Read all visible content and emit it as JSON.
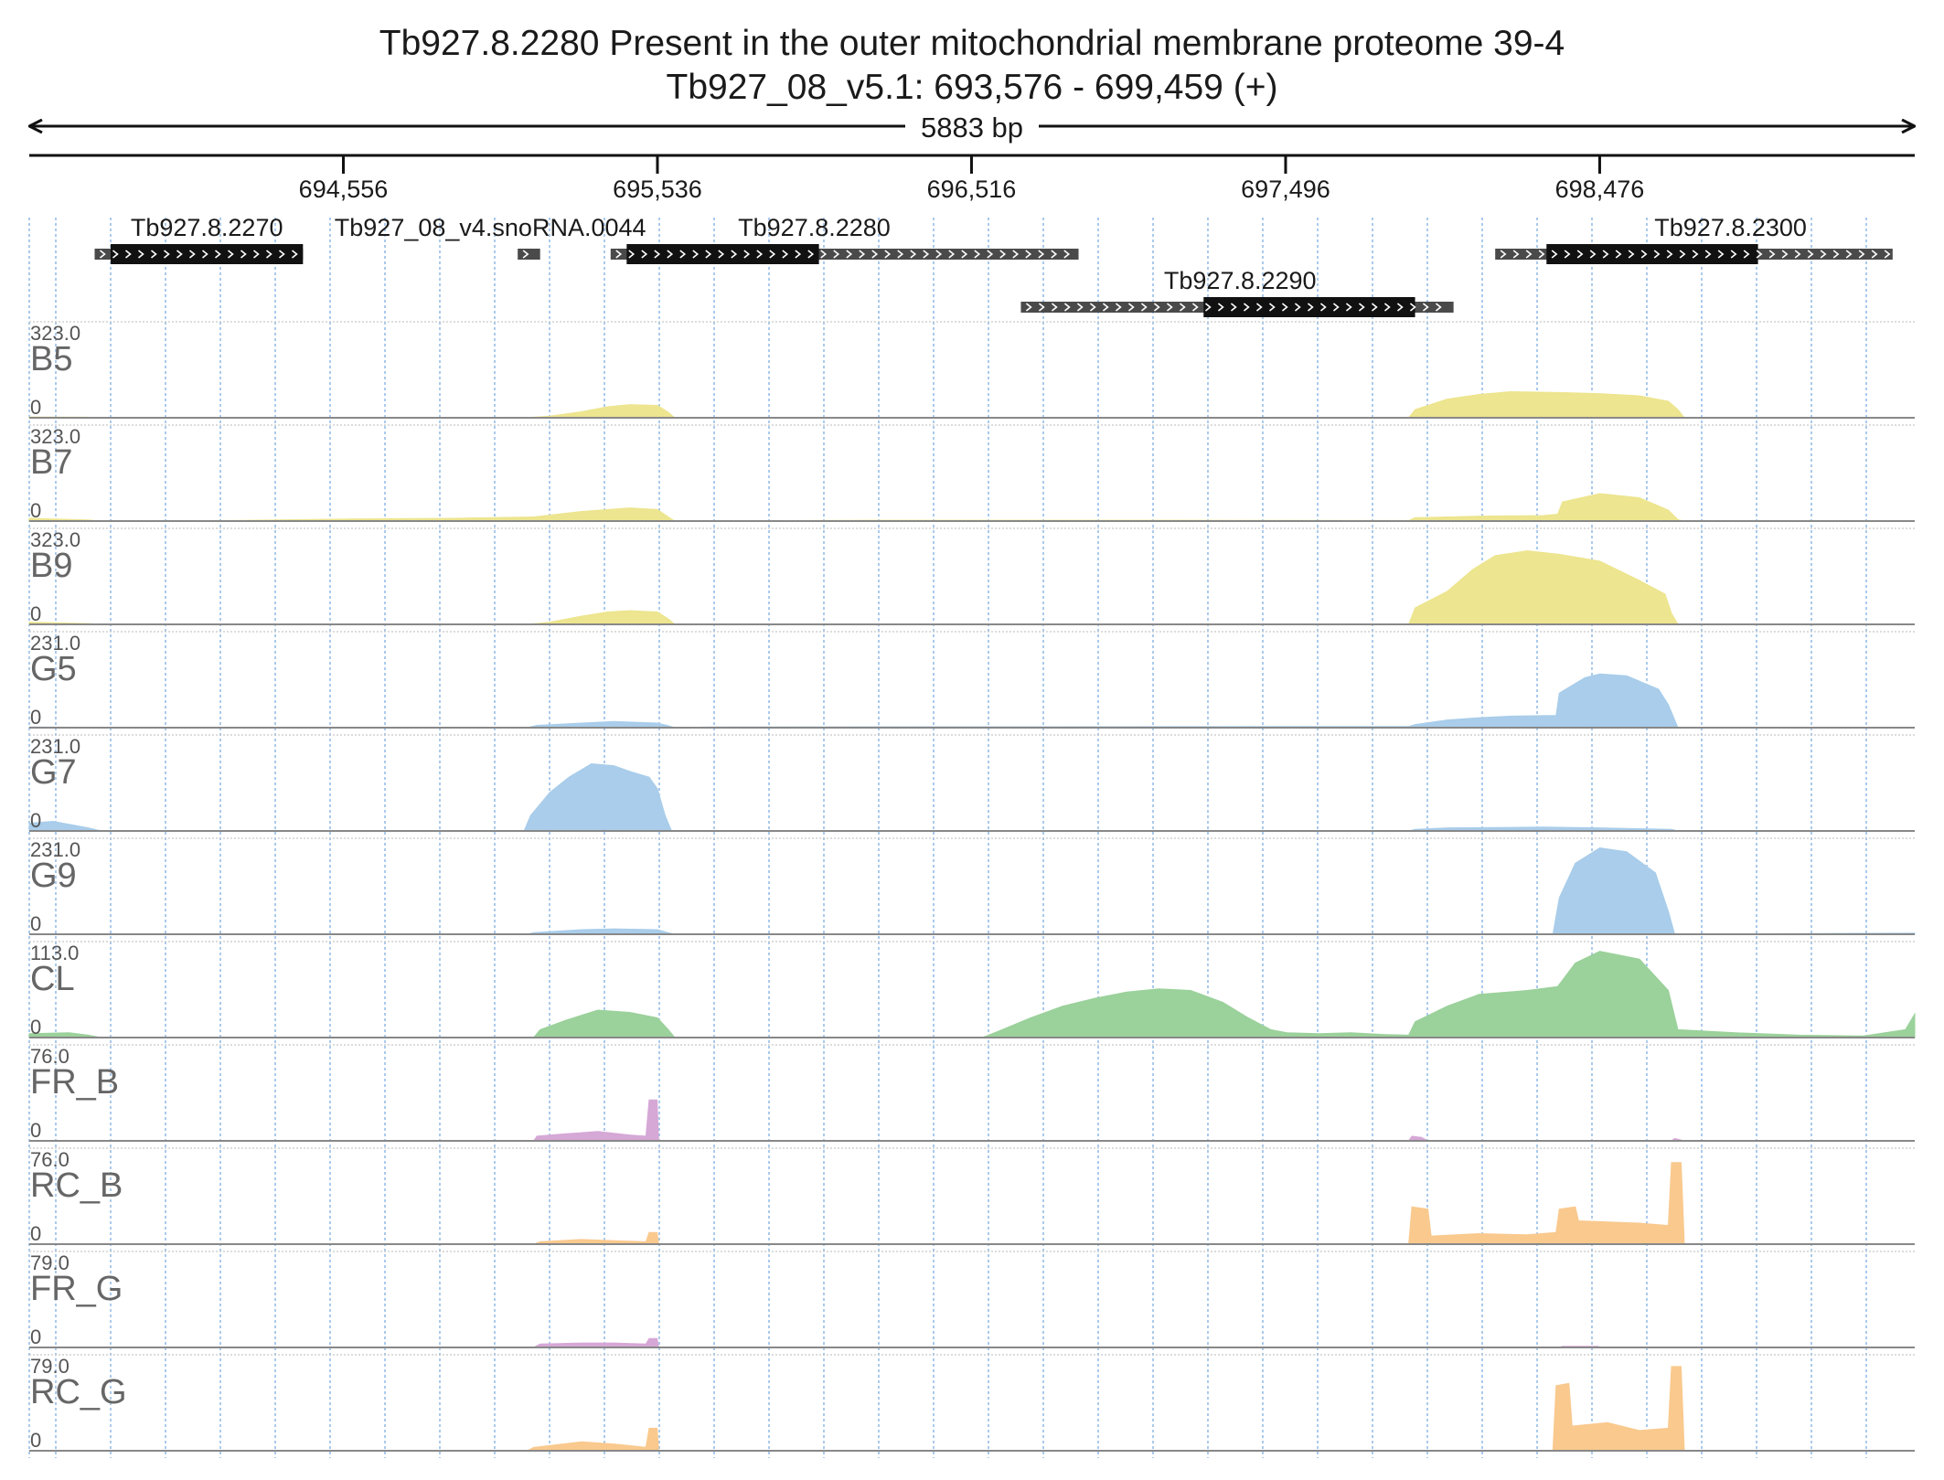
{
  "title": {
    "line1": "Tb927.8.2280  Present in the outer mitochondrial membrane proteome 39-4",
    "line2": "Tb927_08_v5.1: 693,576 - 699,459 (+)"
  },
  "span_label": "5883 bp",
  "chart_data": {
    "type": "area",
    "region": {
      "start": 693576,
      "end": 699459,
      "strand": "+"
    },
    "x_ticks": [
      {
        "value": 694556,
        "label": "694,556"
      },
      {
        "value": 695536,
        "label": "695,536"
      },
      {
        "value": 696516,
        "label": "696,516"
      },
      {
        "value": 697496,
        "label": "697,496"
      },
      {
        "value": 698476,
        "label": "698,476"
      }
    ],
    "genes": [
      {
        "name": "Tb927.8.2270",
        "start": 693780,
        "end": 694430,
        "cds": [
          693830,
          694430
        ]
      },
      {
        "name": "Tb927_08_v4.snoRNA.0044",
        "start": 695100,
        "end": 695170,
        "cds": null
      },
      {
        "name": "Tb927.8.2280",
        "start": 695390,
        "end": 696850,
        "cds": [
          695440,
          696040
        ]
      },
      {
        "name": "Tb927.8.2290",
        "start": 696670,
        "end": 698020,
        "cds": [
          697240,
          697900
        ]
      },
      {
        "name": "Tb927.8.2300",
        "start": 698150,
        "end": 699390,
        "cds": [
          698310,
          698970
        ]
      }
    ],
    "tracks": [
      {
        "name": "B5",
        "max_label": "323.0",
        "min_label": "0",
        "max": 323,
        "color": "#ede58f",
        "points": [
          [
            693576,
            3
          ],
          [
            693760,
            2
          ],
          [
            693800,
            0
          ],
          [
            695130,
            0
          ],
          [
            695150,
            2
          ],
          [
            695200,
            6
          ],
          [
            695300,
            22
          ],
          [
            695380,
            40
          ],
          [
            695450,
            48
          ],
          [
            695536,
            45
          ],
          [
            695570,
            20
          ],
          [
            695590,
            0
          ],
          [
            697880,
            0
          ],
          [
            697900,
            30
          ],
          [
            698000,
            68
          ],
          [
            698100,
            85
          ],
          [
            698200,
            95
          ],
          [
            698350,
            92
          ],
          [
            698476,
            88
          ],
          [
            698600,
            80
          ],
          [
            698690,
            60
          ],
          [
            698720,
            30
          ],
          [
            698740,
            0
          ]
        ]
      },
      {
        "name": "B7",
        "max_label": "323.0",
        "min_label": "0",
        "max": 323,
        "color": "#ede58f",
        "points": [
          [
            693576,
            10
          ],
          [
            693760,
            4
          ],
          [
            693800,
            0
          ],
          [
            694200,
            2
          ],
          [
            694600,
            8
          ],
          [
            694900,
            10
          ],
          [
            695150,
            15
          ],
          [
            695300,
            35
          ],
          [
            695450,
            48
          ],
          [
            695536,
            42
          ],
          [
            695570,
            15
          ],
          [
            695590,
            0
          ],
          [
            696200,
            3
          ],
          [
            697200,
            3
          ],
          [
            697880,
            2
          ],
          [
            697900,
            12
          ],
          [
            698100,
            18
          ],
          [
            698300,
            20
          ],
          [
            698345,
            25
          ],
          [
            698360,
            70
          ],
          [
            698476,
            100
          ],
          [
            698600,
            85
          ],
          [
            698690,
            40
          ],
          [
            698720,
            5
          ],
          [
            698740,
            0
          ]
        ]
      },
      {
        "name": "B9",
        "max_label": "323.0",
        "min_label": "0",
        "max": 323,
        "color": "#ede58f",
        "points": [
          [
            693576,
            8
          ],
          [
            693760,
            3
          ],
          [
            693800,
            0
          ],
          [
            695130,
            0
          ],
          [
            695150,
            2
          ],
          [
            695200,
            8
          ],
          [
            695300,
            30
          ],
          [
            695380,
            45
          ],
          [
            695450,
            50
          ],
          [
            695536,
            45
          ],
          [
            695570,
            20
          ],
          [
            695590,
            0
          ],
          [
            697880,
            0
          ],
          [
            697900,
            60
          ],
          [
            698000,
            120
          ],
          [
            698080,
            200
          ],
          [
            698150,
            250
          ],
          [
            698250,
            268
          ],
          [
            698350,
            255
          ],
          [
            698476,
            230
          ],
          [
            698600,
            160
          ],
          [
            698680,
            110
          ],
          [
            698700,
            40
          ],
          [
            698720,
            0
          ]
        ]
      },
      {
        "name": "G5",
        "max_label": "231.0",
        "min_label": "0",
        "max": 231,
        "color": "#a9cdea",
        "points": [
          [
            693576,
            2
          ],
          [
            693800,
            1
          ],
          [
            695130,
            0
          ],
          [
            695160,
            6
          ],
          [
            695300,
            12
          ],
          [
            695400,
            16
          ],
          [
            695536,
            12
          ],
          [
            695570,
            5
          ],
          [
            695590,
            0
          ],
          [
            695700,
            2
          ],
          [
            697880,
            3
          ],
          [
            697900,
            8
          ],
          [
            698000,
            20
          ],
          [
            698100,
            26
          ],
          [
            698200,
            30
          ],
          [
            698340,
            32
          ],
          [
            698350,
            90
          ],
          [
            698430,
            130
          ],
          [
            698476,
            140
          ],
          [
            698560,
            135
          ],
          [
            698660,
            100
          ],
          [
            698690,
            60
          ],
          [
            698720,
            0
          ]
        ]
      },
      {
        "name": "G7",
        "max_label": "231.0",
        "min_label": "0",
        "max": 231,
        "color": "#a9cdea",
        "points": [
          [
            693576,
            20
          ],
          [
            693650,
            25
          ],
          [
            693760,
            8
          ],
          [
            693800,
            0
          ],
          [
            695120,
            0
          ],
          [
            695140,
            40
          ],
          [
            695200,
            100
          ],
          [
            695260,
            140
          ],
          [
            695330,
            175
          ],
          [
            695400,
            170
          ],
          [
            695450,
            155
          ],
          [
            695510,
            140
          ],
          [
            695536,
            110
          ],
          [
            695560,
            40
          ],
          [
            695580,
            0
          ],
          [
            697880,
            0
          ],
          [
            697900,
            4
          ],
          [
            698000,
            8
          ],
          [
            698300,
            10
          ],
          [
            698476,
            8
          ],
          [
            698700,
            4
          ],
          [
            698720,
            0
          ]
        ]
      },
      {
        "name": "G9",
        "max_label": "231.0",
        "min_label": "0",
        "max": 231,
        "color": "#a9cdea",
        "points": [
          [
            693576,
            0
          ],
          [
            695130,
            0
          ],
          [
            695150,
            4
          ],
          [
            695300,
            12
          ],
          [
            695400,
            14
          ],
          [
            695536,
            12
          ],
          [
            695570,
            4
          ],
          [
            695590,
            0
          ],
          [
            698330,
            0
          ],
          [
            698350,
            95
          ],
          [
            698400,
            185
          ],
          [
            698476,
            225
          ],
          [
            698560,
            215
          ],
          [
            698650,
            160
          ],
          [
            698690,
            60
          ],
          [
            698710,
            0
          ],
          [
            699459,
            3
          ]
        ]
      },
      {
        "name": "CL",
        "max_label": "113.0",
        "min_label": "0",
        "max": 113,
        "color": "#9bd19b",
        "points": [
          [
            693576,
            5
          ],
          [
            693700,
            6
          ],
          [
            693760,
            3
          ],
          [
            693800,
            0
          ],
          [
            695150,
            0
          ],
          [
            695170,
            10
          ],
          [
            695250,
            22
          ],
          [
            695350,
            35
          ],
          [
            695450,
            32
          ],
          [
            695536,
            25
          ],
          [
            695570,
            10
          ],
          [
            695590,
            0
          ],
          [
            696550,
            0
          ],
          [
            696600,
            8
          ],
          [
            696700,
            25
          ],
          [
            696800,
            40
          ],
          [
            696900,
            50
          ],
          [
            697000,
            58
          ],
          [
            697100,
            62
          ],
          [
            697200,
            60
          ],
          [
            697300,
            45
          ],
          [
            697380,
            25
          ],
          [
            697450,
            10
          ],
          [
            697500,
            6
          ],
          [
            697600,
            5
          ],
          [
            697700,
            6
          ],
          [
            697800,
            4
          ],
          [
            697880,
            3
          ],
          [
            697900,
            20
          ],
          [
            698000,
            40
          ],
          [
            698100,
            55
          ],
          [
            698250,
            60
          ],
          [
            698345,
            65
          ],
          [
            698400,
            95
          ],
          [
            698476,
            110
          ],
          [
            698600,
            100
          ],
          [
            698690,
            60
          ],
          [
            698720,
            10
          ],
          [
            698900,
            6
          ],
          [
            699100,
            3
          ],
          [
            699300,
            2
          ],
          [
            699430,
            10
          ],
          [
            699459,
            30
          ]
        ]
      },
      {
        "name": "FR_B",
        "max_label": "76.0",
        "min_label": "0",
        "max": 76,
        "color": "#d6a8d6",
        "points": [
          [
            693576,
            0
          ],
          [
            695150,
            0
          ],
          [
            695160,
            4
          ],
          [
            695250,
            6
          ],
          [
            695350,
            8
          ],
          [
            695450,
            5
          ],
          [
            695500,
            4
          ],
          [
            695510,
            35
          ],
          [
            695535,
            35
          ],
          [
            695540,
            0
          ],
          [
            697880,
            0
          ],
          [
            697890,
            4
          ],
          [
            697920,
            3
          ],
          [
            697940,
            0
          ],
          [
            698700,
            0
          ],
          [
            698710,
            2
          ],
          [
            698740,
            0
          ]
        ]
      },
      {
        "name": "RC_B",
        "max_label": "76.0",
        "min_label": "0",
        "max": 76,
        "color": "#f9c98e",
        "points": [
          [
            693576,
            0
          ],
          [
            695150,
            0
          ],
          [
            695170,
            2
          ],
          [
            695300,
            4
          ],
          [
            695400,
            3
          ],
          [
            695500,
            2
          ],
          [
            695510,
            10
          ],
          [
            695535,
            10
          ],
          [
            695540,
            0
          ],
          [
            697880,
            0
          ],
          [
            697890,
            32
          ],
          [
            697940,
            30
          ],
          [
            697950,
            7
          ],
          [
            698100,
            9
          ],
          [
            698250,
            8
          ],
          [
            698340,
            10
          ],
          [
            698350,
            30
          ],
          [
            698400,
            32
          ],
          [
            698410,
            20
          ],
          [
            698600,
            18
          ],
          [
            698690,
            16
          ],
          [
            698700,
            70
          ],
          [
            698730,
            70
          ],
          [
            698740,
            0
          ]
        ]
      },
      {
        "name": "FR_G",
        "max_label": "79.0",
        "min_label": "0",
        "max": 79,
        "color": "#d6a8d6",
        "points": [
          [
            693576,
            0
          ],
          [
            695150,
            0
          ],
          [
            695170,
            3
          ],
          [
            695300,
            4
          ],
          [
            695400,
            4
          ],
          [
            695500,
            3
          ],
          [
            695510,
            8
          ],
          [
            695535,
            8
          ],
          [
            695540,
            0
          ],
          [
            698350,
            0
          ],
          [
            698360,
            1
          ],
          [
            698470,
            1
          ],
          [
            698480,
            0
          ]
        ]
      },
      {
        "name": "RC_G",
        "max_label": "79.0",
        "min_label": "0",
        "max": 79,
        "color": "#f9c98e",
        "points": [
          [
            693576,
            0
          ],
          [
            695130,
            0
          ],
          [
            695150,
            3
          ],
          [
            695300,
            8
          ],
          [
            695400,
            6
          ],
          [
            695500,
            3
          ],
          [
            695510,
            20
          ],
          [
            695535,
            20
          ],
          [
            695540,
            0
          ],
          [
            698330,
            0
          ],
          [
            698340,
            58
          ],
          [
            698380,
            60
          ],
          [
            698390,
            22
          ],
          [
            698500,
            25
          ],
          [
            698600,
            18
          ],
          [
            698690,
            20
          ],
          [
            698700,
            75
          ],
          [
            698730,
            75
          ],
          [
            698740,
            0
          ]
        ]
      }
    ]
  }
}
